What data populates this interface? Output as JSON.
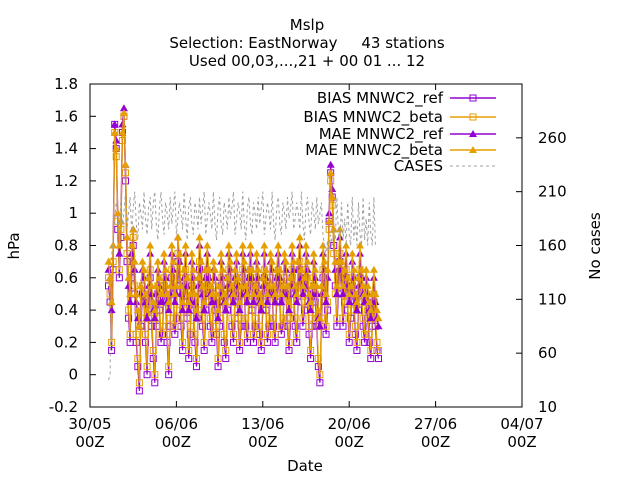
{
  "chart_data": {
    "type": "line",
    "title_lines": [
      "Mslp",
      "Selection: EastNorway     43 stations",
      "Used 00,03,...,21 + 00 01 ... 12"
    ],
    "xlabel": "Date",
    "ylabel": "hPa",
    "y2label": "No cases",
    "xlim": [
      "2014-05-30",
      "2014-07-04"
    ],
    "ylim": [
      -0.2,
      1.8
    ],
    "y2lim": [
      10,
      310
    ],
    "x_ticks": [
      "30/05 00Z",
      "06/06 00Z",
      "13/06 00Z",
      "20/06 00Z",
      "27/06 00Z",
      "04/07 00Z"
    ],
    "y_ticks": [
      "-0.2",
      "0",
      "0.2",
      "0.4",
      "0.6",
      "0.8",
      "1",
      "1.2",
      "1.4",
      "1.6",
      "1.8"
    ],
    "y2_ticks": [
      "10",
      "60",
      "110",
      "160",
      "210",
      "260"
    ],
    "grid": false,
    "legend_position": "top-right",
    "colors": {
      "mnwc2_ref": "#9400d3",
      "mnwc2_beta": "#e69f00",
      "cases": "#a0a0a0"
    },
    "series": [
      {
        "name": "BIAS MNWC2_ref",
        "axis": "left",
        "marker": "open-square",
        "color": "#9400d3",
        "x_start": "2014-05-31T12:00",
        "x_step_hours": 3,
        "values": [
          0.55,
          0.45,
          0.15,
          0.65,
          1.55,
          1.4,
          0.9,
          0.6,
          0.85,
          1.5,
          1.6,
          1.2,
          0.7,
          0.35,
          0.2,
          0.6,
          0.8,
          0.5,
          0.2,
          0.05,
          -0.1,
          0.3,
          0.5,
          0.45,
          0.2,
          0.0,
          0.35,
          0.6,
          0.3,
          0.1,
          -0.05,
          0.3,
          0.5,
          0.4,
          0.2,
          0.25,
          0.55,
          0.45,
          0.2,
          0.0,
          0.3,
          0.6,
          0.5,
          0.25,
          0.35,
          0.7,
          0.55,
          0.3,
          0.15,
          0.45,
          0.6,
          0.35,
          0.1,
          0.25,
          0.55,
          0.4,
          0.2,
          0.05,
          0.35,
          0.65,
          0.5,
          0.3,
          0.15,
          0.4,
          0.6,
          0.45,
          0.3,
          0.2,
          0.5,
          0.4,
          0.25,
          0.05,
          0.3,
          0.55,
          0.45,
          0.2,
          0.1,
          0.4,
          0.6,
          0.5,
          0.3,
          0.2,
          0.45,
          0.55,
          0.35,
          0.15,
          0.3,
          0.6,
          0.5,
          0.3,
          0.2,
          0.45,
          0.6,
          0.4,
          0.2,
          0.3,
          0.55,
          0.45,
          0.25,
          0.15,
          0.4,
          0.6,
          0.4,
          0.2,
          0.3,
          0.55,
          0.5,
          0.3,
          0.2,
          0.45,
          0.6,
          0.45,
          0.25,
          0.3,
          0.55,
          0.5,
          0.3,
          0.15,
          0.35,
          0.6,
          0.5,
          0.3,
          0.2,
          0.5,
          0.65,
          0.45,
          0.3,
          0.4,
          0.6,
          0.5,
          0.25,
          0.1,
          0.3,
          0.55,
          0.45,
          0.3,
          0.05,
          -0.05,
          0.3,
          0.6,
          0.5,
          0.25,
          0.4,
          0.95,
          1.25,
          1.1,
          0.8,
          0.55,
          0.3,
          0.5,
          0.7,
          0.5,
          0.3,
          0.45,
          0.6,
          0.4,
          0.2,
          0.35,
          0.55,
          0.45,
          0.25,
          0.15,
          0.4,
          0.6,
          0.45,
          0.3,
          0.2,
          0.45,
          0.35,
          0.2,
          0.1,
          0.3,
          0.45,
          0.3,
          0.15,
          0.1
        ]
      },
      {
        "name": "BIAS MNWC2_beta",
        "axis": "left",
        "marker": "open-square",
        "color": "#e69f00",
        "x_start": "2014-05-31T12:00",
        "x_step_hours": 3,
        "values": [
          0.6,
          0.5,
          0.2,
          0.7,
          1.5,
          1.35,
          0.95,
          0.65,
          0.9,
          1.45,
          1.6,
          1.25,
          0.75,
          0.4,
          0.25,
          0.65,
          0.85,
          0.55,
          0.25,
          0.1,
          -0.05,
          0.35,
          0.55,
          0.5,
          0.25,
          0.05,
          0.4,
          0.65,
          0.35,
          0.15,
          0.0,
          0.35,
          0.55,
          0.45,
          0.25,
          0.3,
          0.6,
          0.5,
          0.25,
          0.05,
          0.35,
          0.65,
          0.55,
          0.3,
          0.4,
          0.75,
          0.6,
          0.35,
          0.2,
          0.5,
          0.65,
          0.4,
          0.15,
          0.3,
          0.6,
          0.45,
          0.25,
          0.1,
          0.4,
          0.7,
          0.55,
          0.35,
          0.2,
          0.45,
          0.65,
          0.5,
          0.35,
          0.25,
          0.55,
          0.45,
          0.3,
          0.1,
          0.35,
          0.6,
          0.5,
          0.25,
          0.15,
          0.45,
          0.65,
          0.55,
          0.35,
          0.25,
          0.5,
          0.6,
          0.4,
          0.2,
          0.35,
          0.65,
          0.55,
          0.35,
          0.25,
          0.5,
          0.65,
          0.45,
          0.25,
          0.35,
          0.6,
          0.5,
          0.3,
          0.2,
          0.45,
          0.65,
          0.45,
          0.25,
          0.35,
          0.6,
          0.55,
          0.35,
          0.25,
          0.5,
          0.65,
          0.5,
          0.3,
          0.35,
          0.6,
          0.55,
          0.35,
          0.2,
          0.4,
          0.65,
          0.55,
          0.35,
          0.25,
          0.55,
          0.7,
          0.5,
          0.35,
          0.45,
          0.65,
          0.55,
          0.3,
          0.15,
          0.35,
          0.6,
          0.5,
          0.35,
          0.1,
          0.0,
          0.35,
          0.65,
          0.55,
          0.3,
          0.45,
          0.9,
          1.2,
          1.05,
          0.75,
          0.5,
          0.35,
          0.55,
          0.75,
          0.55,
          0.35,
          0.5,
          0.65,
          0.45,
          0.25,
          0.4,
          0.6,
          0.5,
          0.3,
          0.2,
          0.45,
          0.65,
          0.5,
          0.35,
          0.25,
          0.5,
          0.4,
          0.25,
          0.15,
          0.35,
          0.5,
          0.35,
          0.2,
          0.15
        ]
      },
      {
        "name": "MAE MNWC2_ref",
        "axis": "left",
        "marker": "filled-triangle",
        "color": "#9400d3",
        "x_start": "2014-05-31T12:00",
        "x_step_hours": 3,
        "values": [
          0.65,
          0.6,
          0.4,
          0.8,
          1.55,
          1.45,
          1.0,
          0.75,
          0.95,
          1.55,
          1.65,
          1.3,
          0.85,
          0.55,
          0.45,
          0.75,
          0.9,
          0.65,
          0.45,
          0.35,
          0.3,
          0.5,
          0.65,
          0.6,
          0.45,
          0.35,
          0.55,
          0.75,
          0.5,
          0.4,
          0.35,
          0.5,
          0.65,
          0.55,
          0.45,
          0.45,
          0.7,
          0.6,
          0.45,
          0.4,
          0.5,
          0.75,
          0.65,
          0.45,
          0.5,
          0.85,
          0.7,
          0.5,
          0.4,
          0.6,
          0.75,
          0.55,
          0.4,
          0.45,
          0.7,
          0.6,
          0.45,
          0.35,
          0.55,
          0.8,
          0.65,
          0.5,
          0.4,
          0.6,
          0.75,
          0.6,
          0.5,
          0.45,
          0.65,
          0.6,
          0.45,
          0.35,
          0.5,
          0.7,
          0.6,
          0.45,
          0.4,
          0.55,
          0.75,
          0.65,
          0.5,
          0.45,
          0.6,
          0.7,
          0.55,
          0.4,
          0.5,
          0.75,
          0.65,
          0.5,
          0.45,
          0.6,
          0.75,
          0.6,
          0.45,
          0.5,
          0.7,
          0.6,
          0.45,
          0.4,
          0.55,
          0.75,
          0.6,
          0.45,
          0.5,
          0.7,
          0.65,
          0.5,
          0.45,
          0.6,
          0.75,
          0.6,
          0.45,
          0.5,
          0.7,
          0.65,
          0.5,
          0.4,
          0.55,
          0.75,
          0.65,
          0.5,
          0.45,
          0.65,
          0.8,
          0.6,
          0.5,
          0.55,
          0.75,
          0.65,
          0.45,
          0.4,
          0.5,
          0.7,
          0.6,
          0.5,
          0.35,
          0.3,
          0.5,
          0.75,
          0.65,
          0.45,
          0.6,
          1.0,
          1.3,
          1.15,
          0.9,
          0.65,
          0.5,
          0.65,
          0.85,
          0.65,
          0.5,
          0.6,
          0.75,
          0.55,
          0.45,
          0.5,
          0.7,
          0.6,
          0.45,
          0.4,
          0.55,
          0.75,
          0.6,
          0.5,
          0.45,
          0.6,
          0.5,
          0.4,
          0.35,
          0.45,
          0.6,
          0.45,
          0.35,
          0.3
        ]
      },
      {
        "name": "MAE MNWC2_beta",
        "axis": "left",
        "marker": "filled-triangle",
        "color": "#e69f00",
        "x_start": "2014-05-31T12:00",
        "x_step_hours": 3,
        "values": [
          0.7,
          0.6,
          0.45,
          0.8,
          1.5,
          1.4,
          1.0,
          0.8,
          0.95,
          1.5,
          1.62,
          1.3,
          0.85,
          0.6,
          0.5,
          0.8,
          0.9,
          0.7,
          0.5,
          0.4,
          0.3,
          0.55,
          0.7,
          0.65,
          0.5,
          0.4,
          0.6,
          0.8,
          0.55,
          0.45,
          0.4,
          0.55,
          0.7,
          0.6,
          0.5,
          0.5,
          0.75,
          0.65,
          0.5,
          0.45,
          0.55,
          0.8,
          0.7,
          0.5,
          0.55,
          0.85,
          0.75,
          0.55,
          0.45,
          0.65,
          0.8,
          0.6,
          0.45,
          0.5,
          0.75,
          0.65,
          0.5,
          0.4,
          0.6,
          0.85,
          0.7,
          0.55,
          0.45,
          0.65,
          0.8,
          0.65,
          0.55,
          0.5,
          0.7,
          0.65,
          0.5,
          0.4,
          0.55,
          0.75,
          0.65,
          0.5,
          0.45,
          0.6,
          0.8,
          0.7,
          0.55,
          0.5,
          0.65,
          0.75,
          0.6,
          0.45,
          0.55,
          0.8,
          0.7,
          0.55,
          0.5,
          0.65,
          0.8,
          0.65,
          0.5,
          0.55,
          0.75,
          0.65,
          0.5,
          0.45,
          0.6,
          0.8,
          0.65,
          0.5,
          0.55,
          0.75,
          0.7,
          0.55,
          0.5,
          0.65,
          0.8,
          0.65,
          0.5,
          0.55,
          0.75,
          0.7,
          0.55,
          0.45,
          0.6,
          0.8,
          0.7,
          0.55,
          0.5,
          0.7,
          0.85,
          0.65,
          0.55,
          0.6,
          0.8,
          0.7,
          0.5,
          0.45,
          0.55,
          0.75,
          0.65,
          0.55,
          0.4,
          0.35,
          0.55,
          0.8,
          0.7,
          0.5,
          0.65,
          0.95,
          1.25,
          1.1,
          0.9,
          0.7,
          0.55,
          0.7,
          0.9,
          0.7,
          0.55,
          0.65,
          0.8,
          0.6,
          0.5,
          0.55,
          0.75,
          0.65,
          0.5,
          0.45,
          0.6,
          0.8,
          0.65,
          0.55,
          0.5,
          0.65,
          0.55,
          0.45,
          0.4,
          0.5,
          0.65,
          0.5,
          0.4,
          0.35
        ]
      },
      {
        "name": "CASES",
        "axis": "right",
        "style": "dashed",
        "color": "#a0a0a0",
        "x_start": "2014-05-31T12:00",
        "x_step_hours": 3,
        "values": [
          35,
          40,
          150,
          165,
          185,
          200,
          190,
          170,
          205,
          180,
          190,
          210,
          175,
          190,
          205,
          170,
          195,
          210,
          180,
          165,
          200,
          190,
          175,
          210,
          185,
          170,
          195,
          205,
          175,
          200,
          210,
          180,
          165,
          195,
          210,
          185,
          170,
          200,
          190,
          175,
          205,
          180,
          195,
          210,
          170,
          185,
          200,
          190,
          175,
          210,
          185,
          165,
          195,
          205,
          180,
          170,
          200,
          190,
          175,
          205,
          180,
          195,
          210,
          170,
          185,
          200,
          190,
          175,
          210,
          180,
          165,
          195,
          205,
          180,
          170,
          200,
          190,
          175,
          205,
          185,
          195,
          210,
          170,
          185,
          200,
          190,
          175,
          210,
          180,
          165,
          195,
          205,
          180,
          170,
          200,
          190,
          175,
          205,
          180,
          195,
          210,
          170,
          185,
          200,
          190,
          175,
          210,
          180,
          165,
          195,
          205,
          180,
          170,
          200,
          190,
          175,
          205,
          185,
          195,
          210,
          175,
          185,
          200,
          190,
          175,
          210,
          180,
          165,
          195,
          205,
          180,
          170,
          200,
          190,
          175,
          205,
          180,
          190,
          200,
          170,
          160,
          150,
          165,
          155,
          170,
          160,
          175,
          165,
          205,
          170,
          160,
          200,
          165,
          185,
          160,
          200,
          170,
          160,
          205,
          165,
          185,
          160,
          200,
          170,
          160,
          205,
          165,
          185,
          160,
          200,
          170,
          160,
          205,
          160
        ]
      }
    ]
  }
}
